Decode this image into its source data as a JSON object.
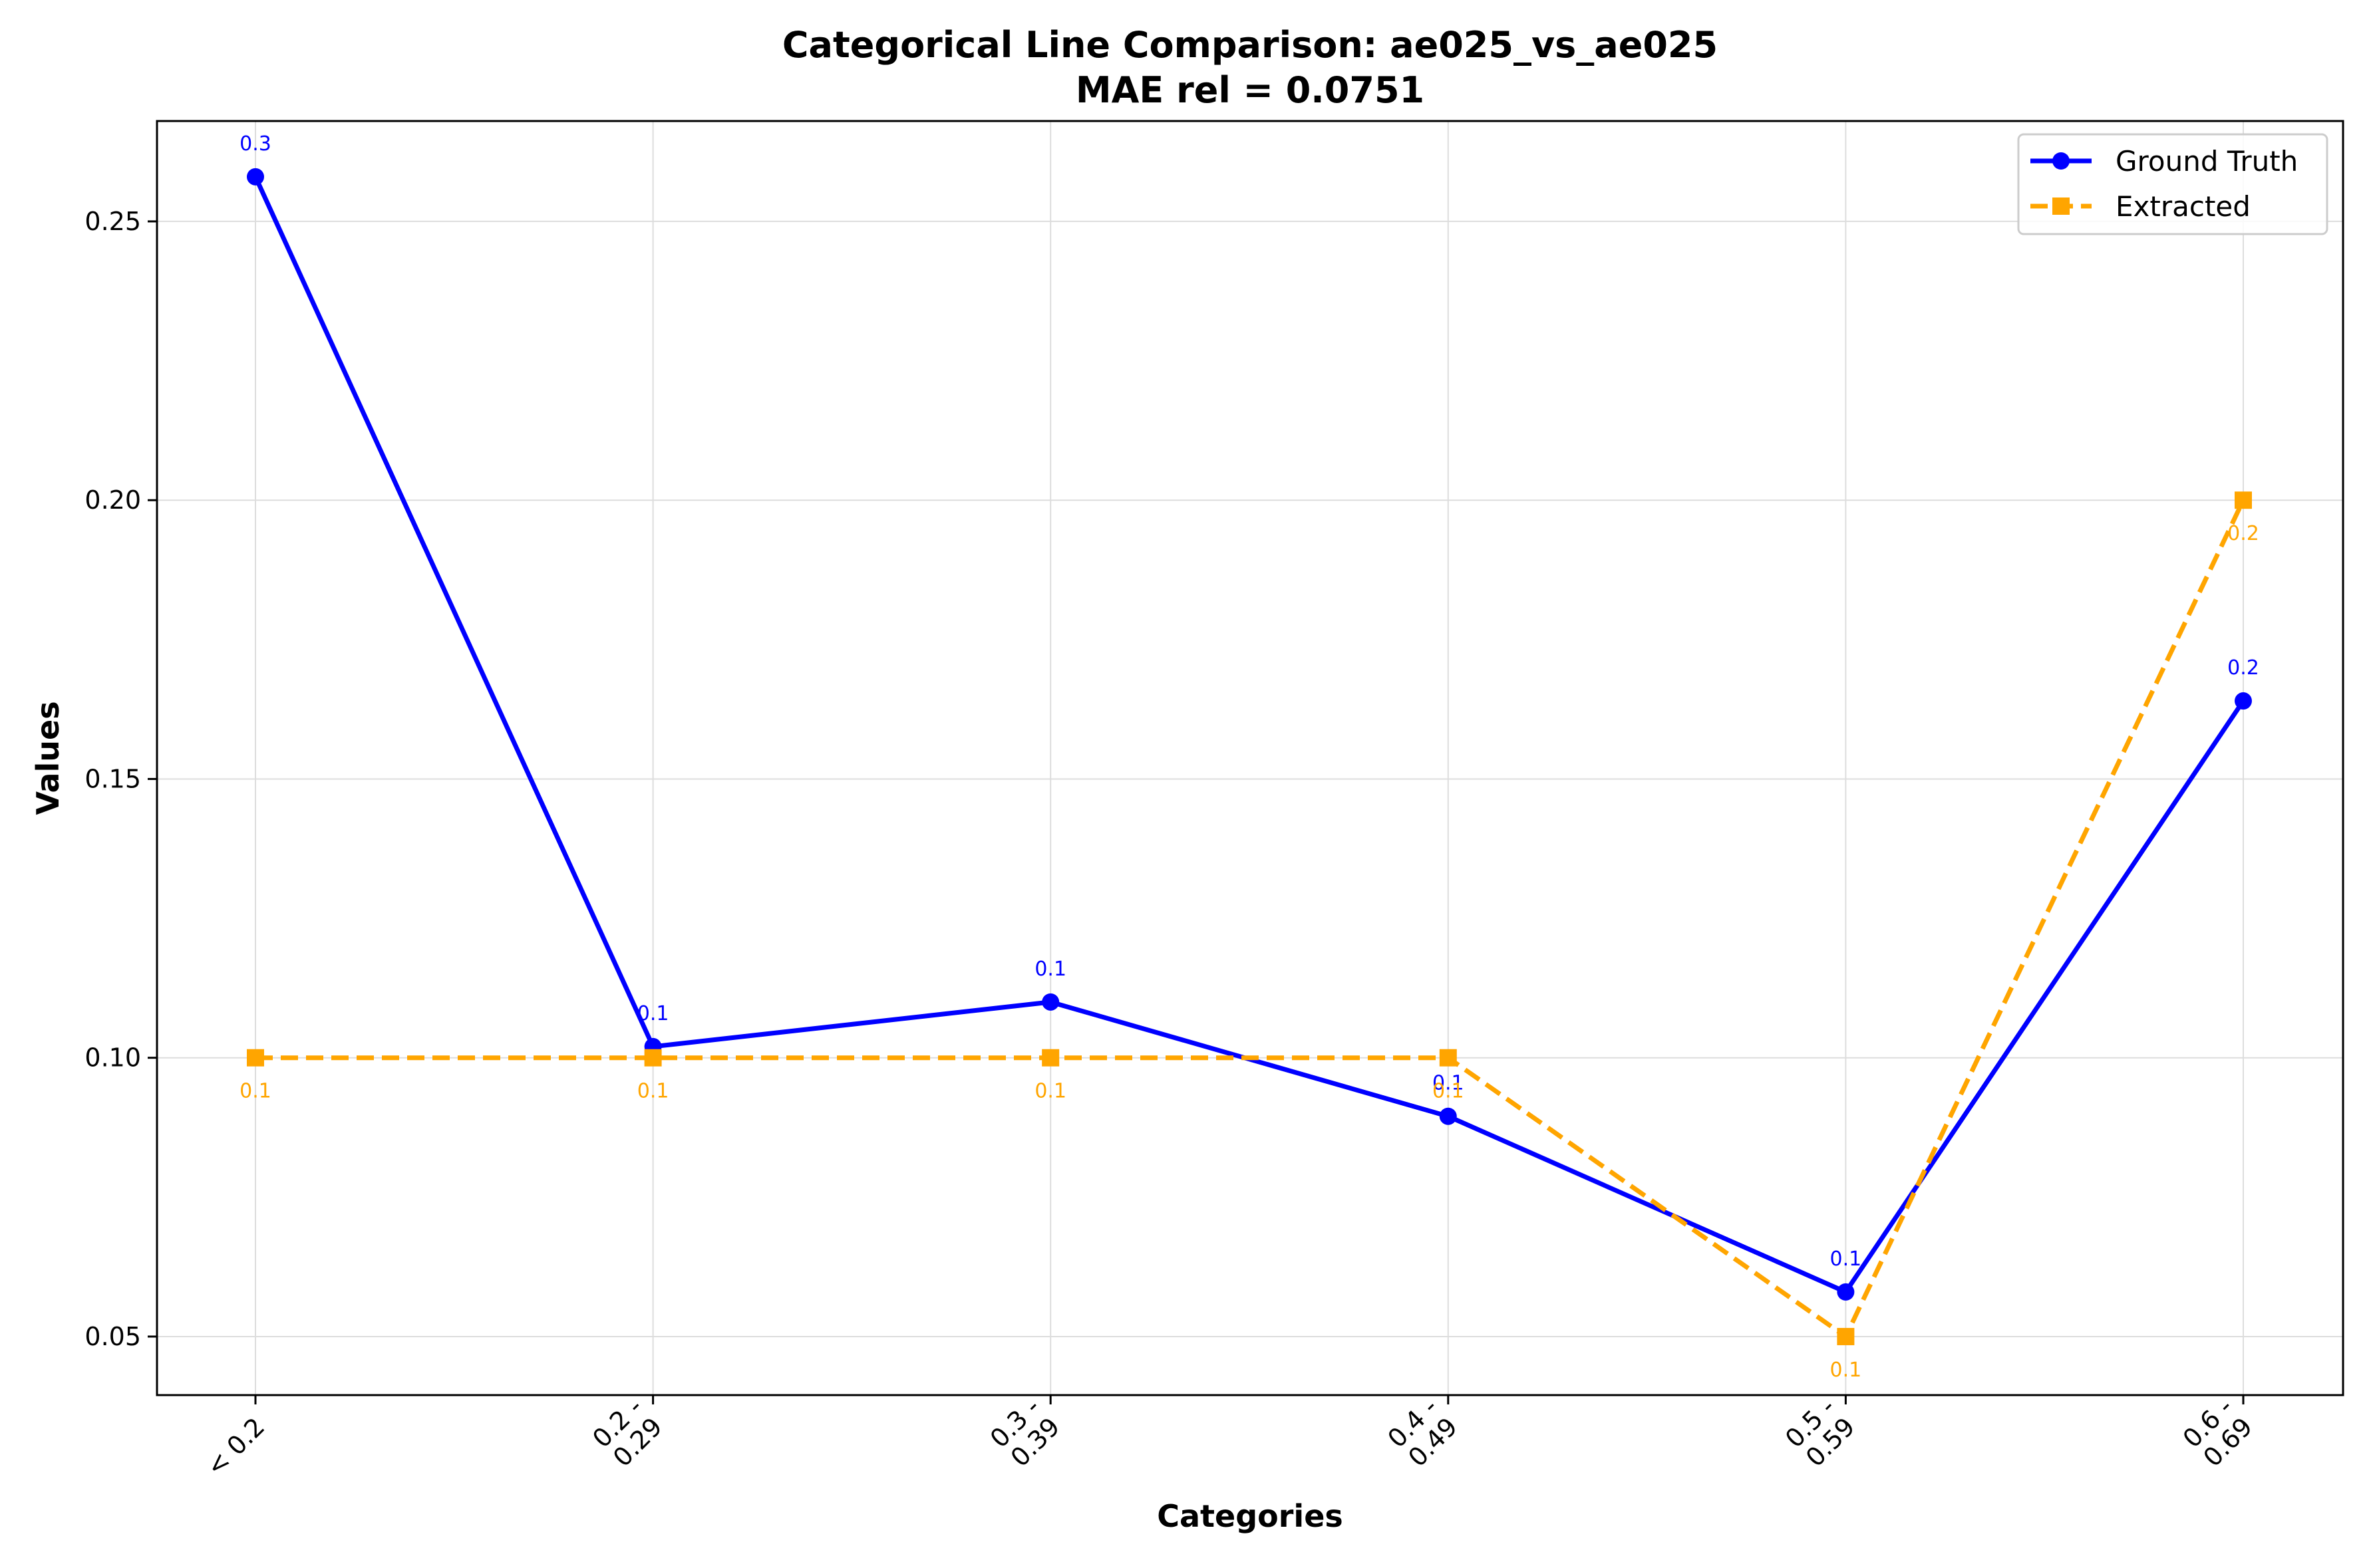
{
  "chart_data": {
    "type": "line",
    "title": "Categorical Line Comparison: ae025_vs_ae025",
    "subtitle": "MAE rel = 0.0751",
    "xlabel": "Categories",
    "ylabel": "Values",
    "categories": [
      "< 0.2",
      "0.2 - 0.29",
      "0.3 - 0.39",
      "0.4 - 0.49",
      "0.5 - 0.59",
      "0.6 - 0.69"
    ],
    "ylim": [
      0.0395,
      0.268
    ],
    "yticks": [
      0.05,
      0.1,
      0.15,
      0.2,
      0.25
    ],
    "ytick_labels": [
      "0.05",
      "0.10",
      "0.15",
      "0.20",
      "0.25"
    ],
    "grid": true,
    "legend_position": "top-right",
    "series": [
      {
        "name": "Ground Truth",
        "values": [
          0.258,
          0.102,
          0.11,
          0.0895,
          0.058,
          0.164
        ],
        "labels": [
          "0.3",
          "0.1",
          "0.1",
          "0.1",
          "0.1",
          "0.2"
        ],
        "color": "#0000ff",
        "marker": "circle",
        "linestyle": "solid",
        "label_position": "above"
      },
      {
        "name": "Extracted",
        "values": [
          0.1,
          0.1,
          0.1,
          0.1,
          0.05,
          0.2
        ],
        "labels": [
          "0.1",
          "0.1",
          "0.1",
          "0.1",
          "0.1",
          "0.2"
        ],
        "color": "#ffa500",
        "marker": "square",
        "linestyle": "dashed",
        "label_position": "below"
      }
    ]
  }
}
